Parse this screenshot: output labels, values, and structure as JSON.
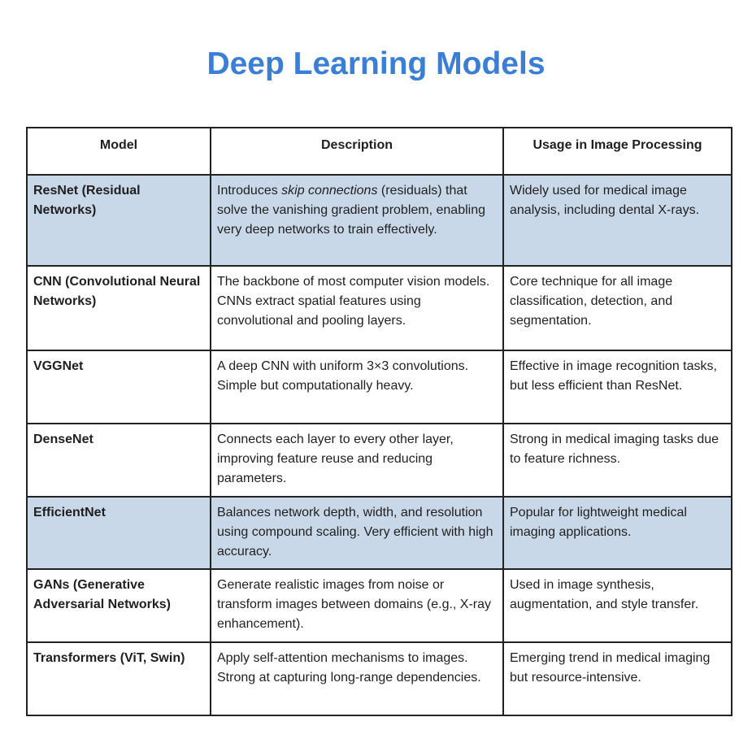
{
  "title": "Deep Learning Models",
  "table": {
    "headers": [
      "Model",
      "Description",
      "Usage in Image Processing"
    ],
    "rows": [
      {
        "model": "ResNet (Residual Networks)",
        "description_before": "Introduces ",
        "description_emphasis": "skip connections",
        "description_after": " (residuals) that solve the vanishing gradient problem, enabling very deep networks to train effectively.",
        "usage": "Widely used for medical image analysis, including dental X-rays."
      },
      {
        "model": "CNN (Convolutional Neural Networks)",
        "description": "The backbone of most computer vision models. CNNs extract spatial features using convolutional and pooling layers.",
        "usage": "Core technique for all image classification, detection, and segmentation."
      },
      {
        "model": "VGGNet",
        "description": "A deep CNN with uniform 3×3 convolutions. Simple but computationally heavy.",
        "usage": "Effective in image recognition tasks, but less efficient than ResNet."
      },
      {
        "model": "DenseNet",
        "description": "Connects each layer to every other layer, improving feature reuse and reducing parameters.",
        "usage": "Strong in medical imaging tasks due to feature richness."
      },
      {
        "model": "EfficientNet",
        "description": "Balances network depth, width, and resolution using compound scaling. Very efficient with high accuracy.",
        "usage": "Popular for lightweight medical imaging applications."
      },
      {
        "model": "GANs (Generative Adversarial Networks)",
        "description": "Generate realistic images from noise or transform images between domains (e.g., X-ray enhancement).",
        "usage": "Used in image synthesis, augmentation, and style transfer."
      },
      {
        "model": "Transformers (ViT, Swin)",
        "description": "Apply self-attention mechanisms to images. Strong at capturing long-range dependencies.",
        "usage": "Emerging trend in medical imaging but resource-intensive."
      }
    ]
  },
  "colors": {
    "title": "#3a7fd5",
    "highlight_row": "#c9d8e8",
    "border": "#222222"
  }
}
